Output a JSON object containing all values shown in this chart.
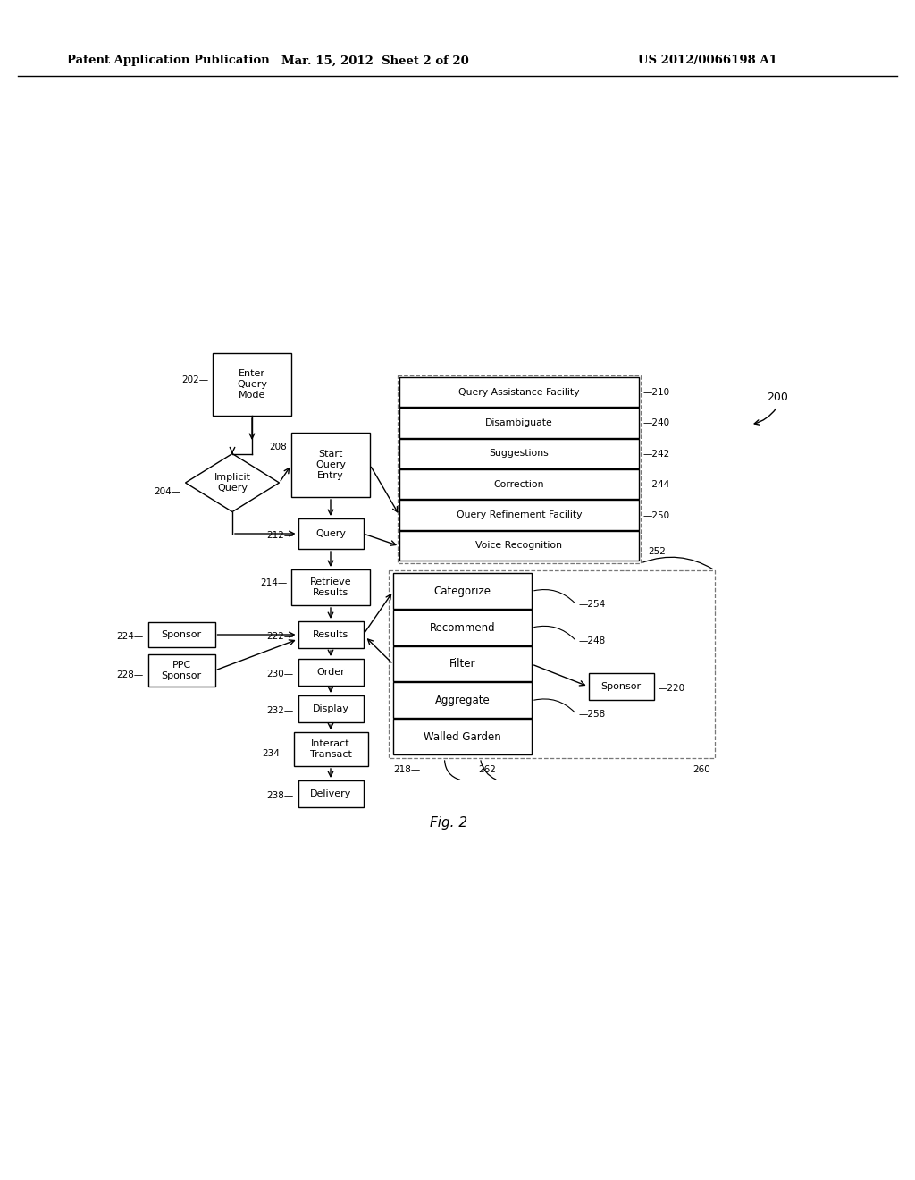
{
  "bg_color": "#ffffff",
  "header_left": "Patent Application Publication",
  "header_mid": "Mar. 15, 2012  Sheet 2 of 20",
  "header_right": "US 2012/0066198 A1",
  "fig_label": "Fig. 2"
}
